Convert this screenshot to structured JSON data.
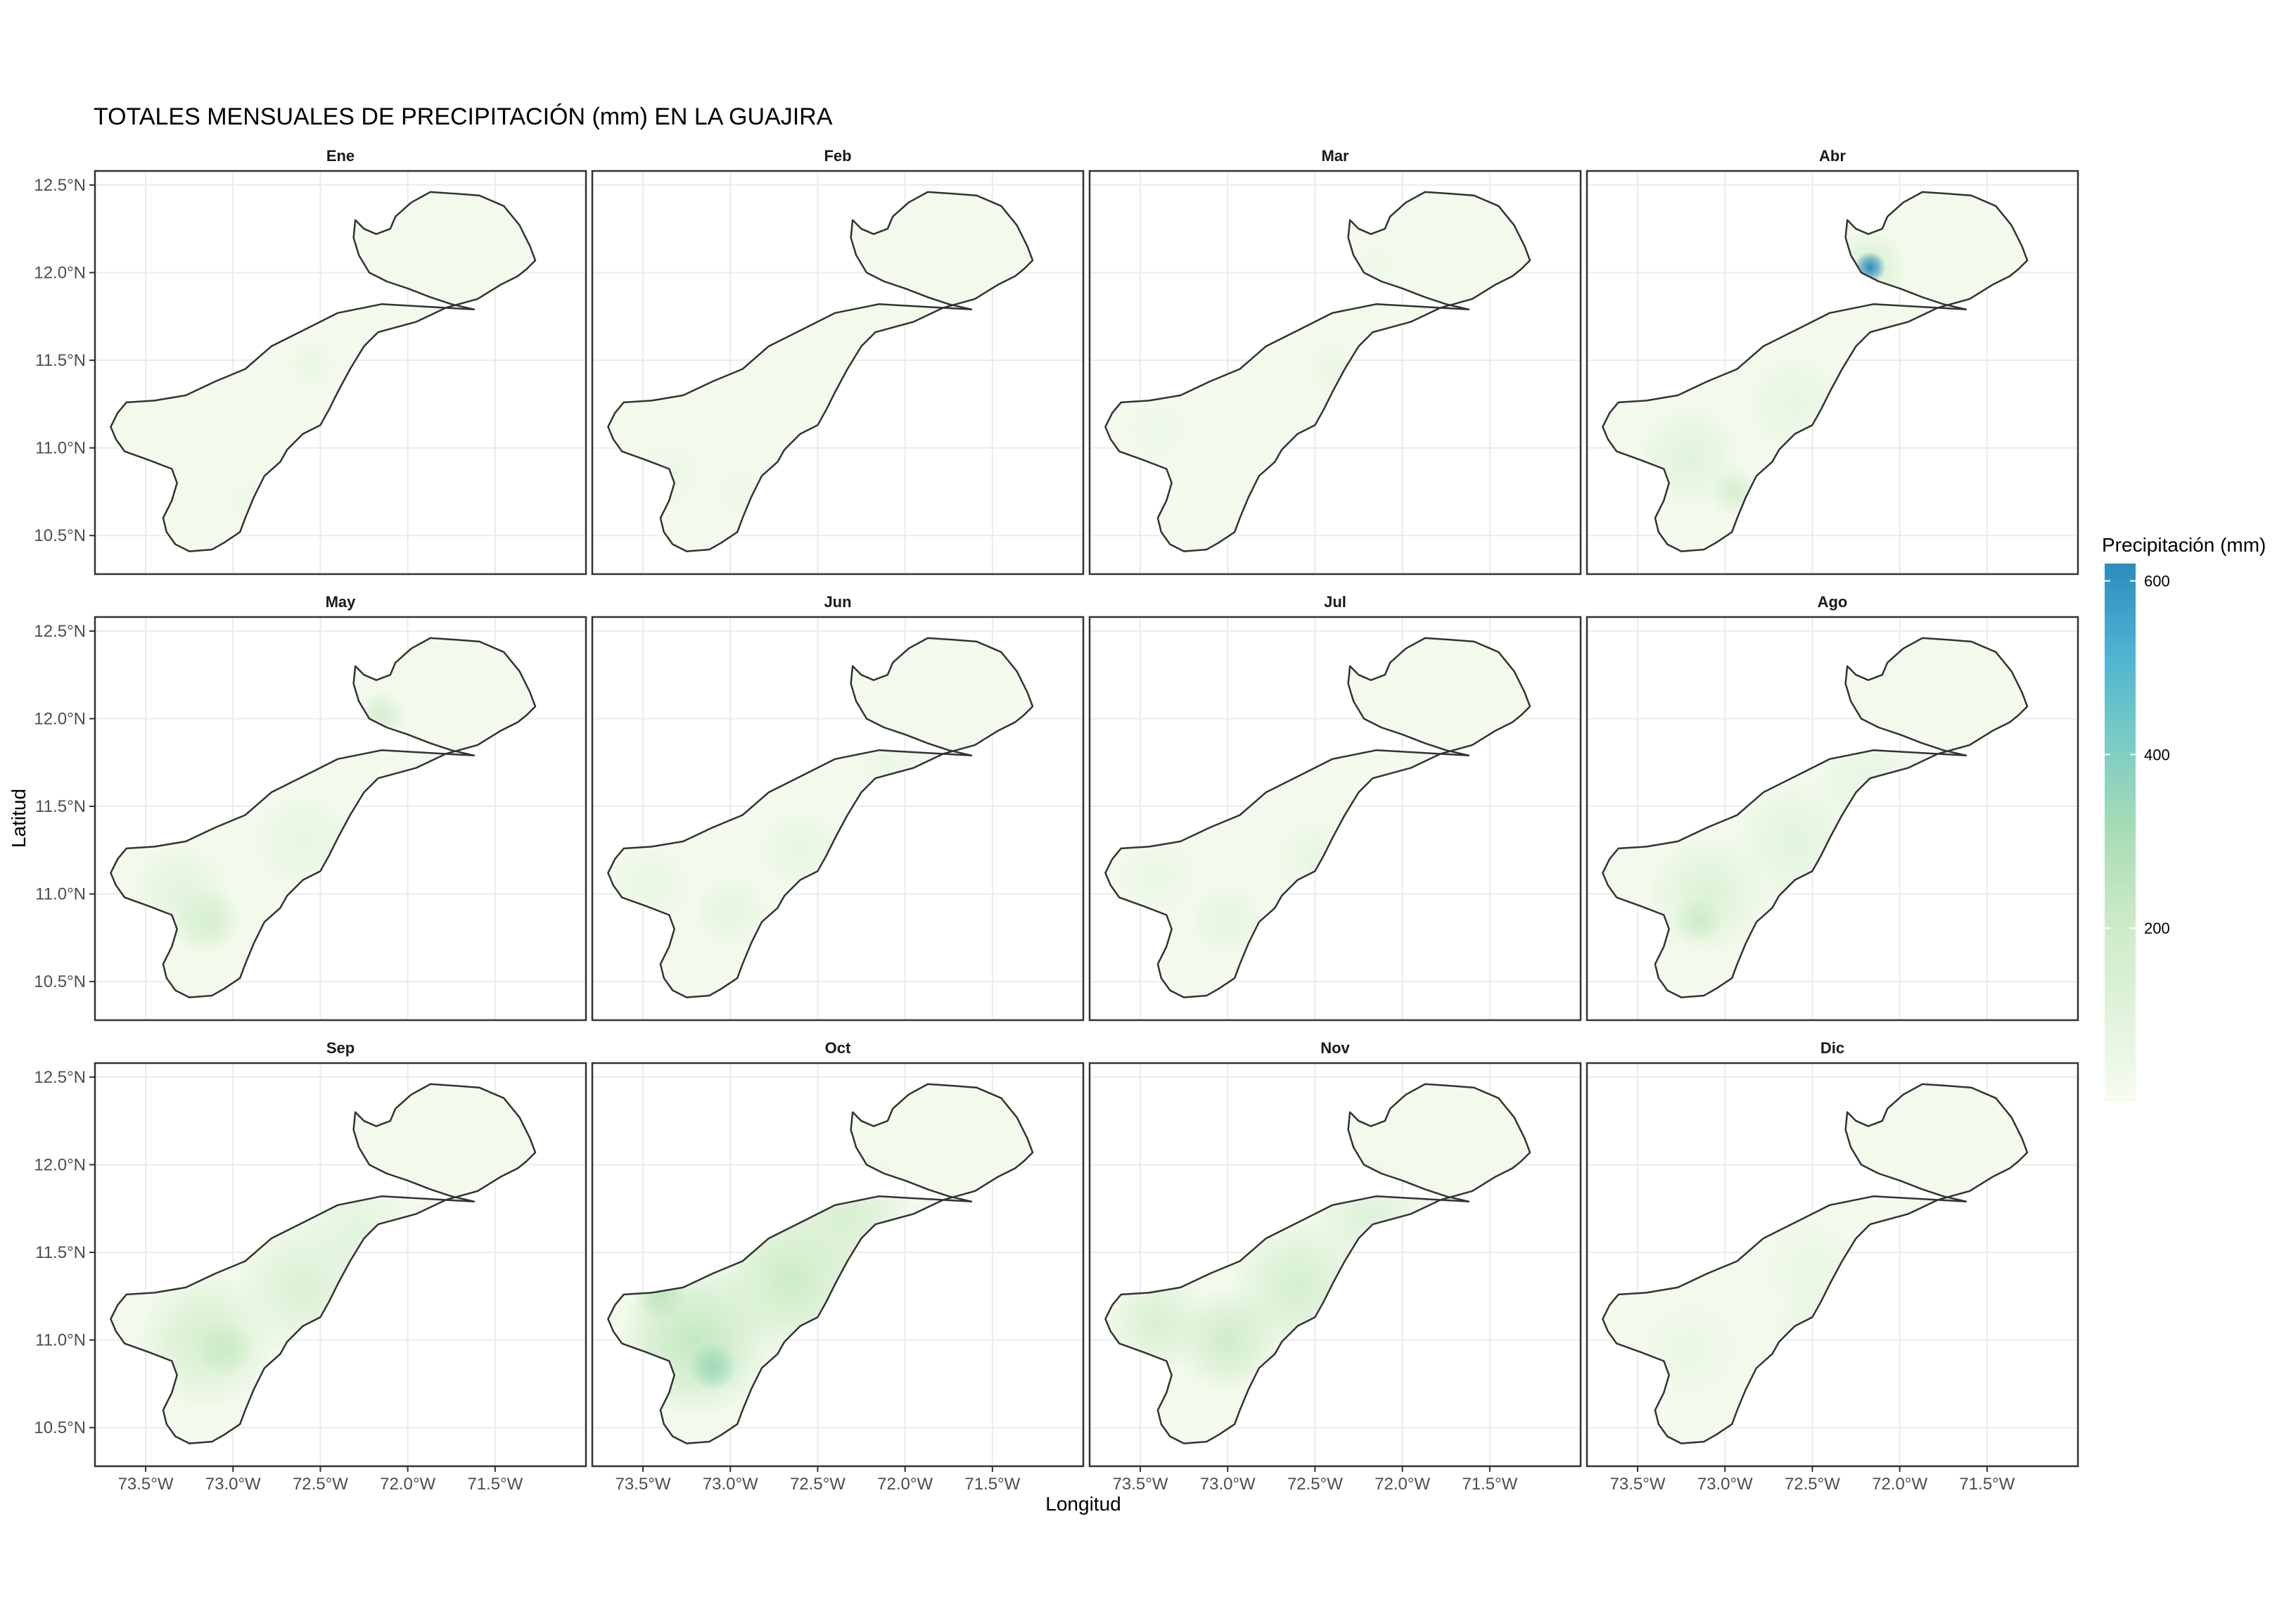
{
  "chart_data": {
    "type": "heatmap",
    "title": "TOTALES MENSUALES DE PRECIPITACIÓN (mm) EN LA GUAJIRA",
    "xlabel": "Longitud",
    "ylabel": "Latitud",
    "x_ticks": [
      {
        "value": -73.5,
        "label": "73.5°W"
      },
      {
        "value": -73.0,
        "label": "73.0°W"
      },
      {
        "value": -72.5,
        "label": "72.5°W"
      },
      {
        "value": -72.0,
        "label": "72.0°W"
      },
      {
        "value": -71.5,
        "label": "71.5°W"
      }
    ],
    "y_ticks": [
      {
        "value": 12.5,
        "label": "12.5°N"
      },
      {
        "value": 12.0,
        "label": "12.0°N"
      },
      {
        "value": 11.5,
        "label": "11.5°N"
      },
      {
        "value": 11.0,
        "label": "11.0°N"
      },
      {
        "value": 10.5,
        "label": "10.5°N"
      }
    ],
    "xlim": [
      -73.79,
      -70.98
    ],
    "ylim": [
      10.28,
      12.58
    ],
    "grid": true,
    "legend": {
      "title": "Precipitación (mm)",
      "position": "right",
      "ticks": [
        200,
        400,
        600
      ],
      "range": [
        0,
        620
      ],
      "colors": [
        "#f7fcf0",
        "#e0f3db",
        "#ccebc5",
        "#a8ddb5",
        "#7bccc4",
        "#4eb3d3",
        "#2b8cbe"
      ]
    },
    "base_level_mm": 20,
    "panels": [
      {
        "month": "Ene",
        "hotspots": [
          {
            "lon": -72.55,
            "lat": 11.48,
            "mm": 60,
            "r": 0.14
          },
          {
            "lon": -72.9,
            "lat": 10.7,
            "mm": 40,
            "r": 0.15
          }
        ]
      },
      {
        "month": "Feb",
        "hotspots": [
          {
            "lon": -73.35,
            "lat": 10.85,
            "mm": 55,
            "r": 0.2
          },
          {
            "lon": -72.95,
            "lat": 10.75,
            "mm": 40,
            "r": 0.16
          }
        ]
      },
      {
        "month": "Mar",
        "hotspots": [
          {
            "lon": -72.4,
            "lat": 11.45,
            "mm": 55,
            "r": 0.16
          },
          {
            "lon": -72.15,
            "lat": 12.05,
            "mm": 50,
            "r": 0.12
          },
          {
            "lon": -73.4,
            "lat": 11.1,
            "mm": 45,
            "r": 0.2
          }
        ]
      },
      {
        "month": "Abr",
        "hotspots": [
          {
            "lon": -72.17,
            "lat": 12.03,
            "mm": 620,
            "r": 0.09
          },
          {
            "lon": -72.17,
            "lat": 12.03,
            "mm": 140,
            "r": 0.22
          },
          {
            "lon": -72.95,
            "lat": 10.75,
            "mm": 150,
            "r": 0.14
          },
          {
            "lon": -73.2,
            "lat": 10.95,
            "mm": 100,
            "r": 0.3
          },
          {
            "lon": -72.6,
            "lat": 11.25,
            "mm": 70,
            "r": 0.3
          }
        ]
      },
      {
        "month": "May",
        "hotspots": [
          {
            "lon": -72.15,
            "lat": 12.02,
            "mm": 150,
            "r": 0.14
          },
          {
            "lon": -73.15,
            "lat": 10.85,
            "mm": 160,
            "r": 0.2
          },
          {
            "lon": -73.3,
            "lat": 11.0,
            "mm": 90,
            "r": 0.3
          },
          {
            "lon": -72.6,
            "lat": 11.3,
            "mm": 70,
            "r": 0.3
          }
        ]
      },
      {
        "month": "Jun",
        "hotspots": [
          {
            "lon": -73.0,
            "lat": 10.9,
            "mm": 80,
            "r": 0.22
          },
          {
            "lon": -72.6,
            "lat": 11.25,
            "mm": 70,
            "r": 0.25
          },
          {
            "lon": -73.45,
            "lat": 11.05,
            "mm": 60,
            "r": 0.25
          },
          {
            "lon": -72.1,
            "lat": 11.8,
            "mm": 55,
            "r": 0.2
          }
        ]
      },
      {
        "month": "Jul",
        "hotspots": [
          {
            "lon": -73.0,
            "lat": 10.85,
            "mm": 80,
            "r": 0.22
          },
          {
            "lon": -72.5,
            "lat": 11.2,
            "mm": 65,
            "r": 0.25
          },
          {
            "lon": -73.4,
            "lat": 11.1,
            "mm": 55,
            "r": 0.25
          }
        ]
      },
      {
        "month": "Ago",
        "hotspots": [
          {
            "lon": -73.15,
            "lat": 10.85,
            "mm": 190,
            "r": 0.14
          },
          {
            "lon": -73.1,
            "lat": 11.0,
            "mm": 120,
            "r": 0.35
          },
          {
            "lon": -72.6,
            "lat": 11.3,
            "mm": 95,
            "r": 0.35
          },
          {
            "lon": -72.2,
            "lat": 11.65,
            "mm": 70,
            "r": 0.3
          }
        ]
      },
      {
        "month": "Sep",
        "hotspots": [
          {
            "lon": -73.05,
            "lat": 10.95,
            "mm": 210,
            "r": 0.16
          },
          {
            "lon": -73.15,
            "lat": 11.0,
            "mm": 160,
            "r": 0.4
          },
          {
            "lon": -72.6,
            "lat": 11.3,
            "mm": 130,
            "r": 0.4
          },
          {
            "lon": -72.3,
            "lat": 11.6,
            "mm": 95,
            "r": 0.35
          }
        ]
      },
      {
        "month": "Oct",
        "hotspots": [
          {
            "lon": -73.1,
            "lat": 10.85,
            "mm": 330,
            "r": 0.14
          },
          {
            "lon": -73.2,
            "lat": 11.0,
            "mm": 230,
            "r": 0.45
          },
          {
            "lon": -72.65,
            "lat": 11.35,
            "mm": 200,
            "r": 0.45
          },
          {
            "lon": -72.35,
            "lat": 11.7,
            "mm": 150,
            "r": 0.4
          },
          {
            "lon": -73.4,
            "lat": 11.25,
            "mm": 240,
            "r": 0.15
          }
        ]
      },
      {
        "month": "Nov",
        "hotspots": [
          {
            "lon": -73.0,
            "lat": 11.0,
            "mm": 190,
            "r": 0.3
          },
          {
            "lon": -72.6,
            "lat": 11.3,
            "mm": 160,
            "r": 0.4
          },
          {
            "lon": -72.2,
            "lat": 11.7,
            "mm": 110,
            "r": 0.35
          },
          {
            "lon": -73.4,
            "lat": 11.1,
            "mm": 140,
            "r": 0.3
          }
        ]
      },
      {
        "month": "Dic",
        "hotspots": [
          {
            "lon": -72.5,
            "lat": 11.1,
            "mm": 70,
            "r": 0.22
          },
          {
            "lon": -72.5,
            "lat": 11.4,
            "mm": 60,
            "r": 0.3
          },
          {
            "lon": -73.2,
            "lat": 10.95,
            "mm": 55,
            "r": 0.3
          }
        ]
      }
    ]
  }
}
